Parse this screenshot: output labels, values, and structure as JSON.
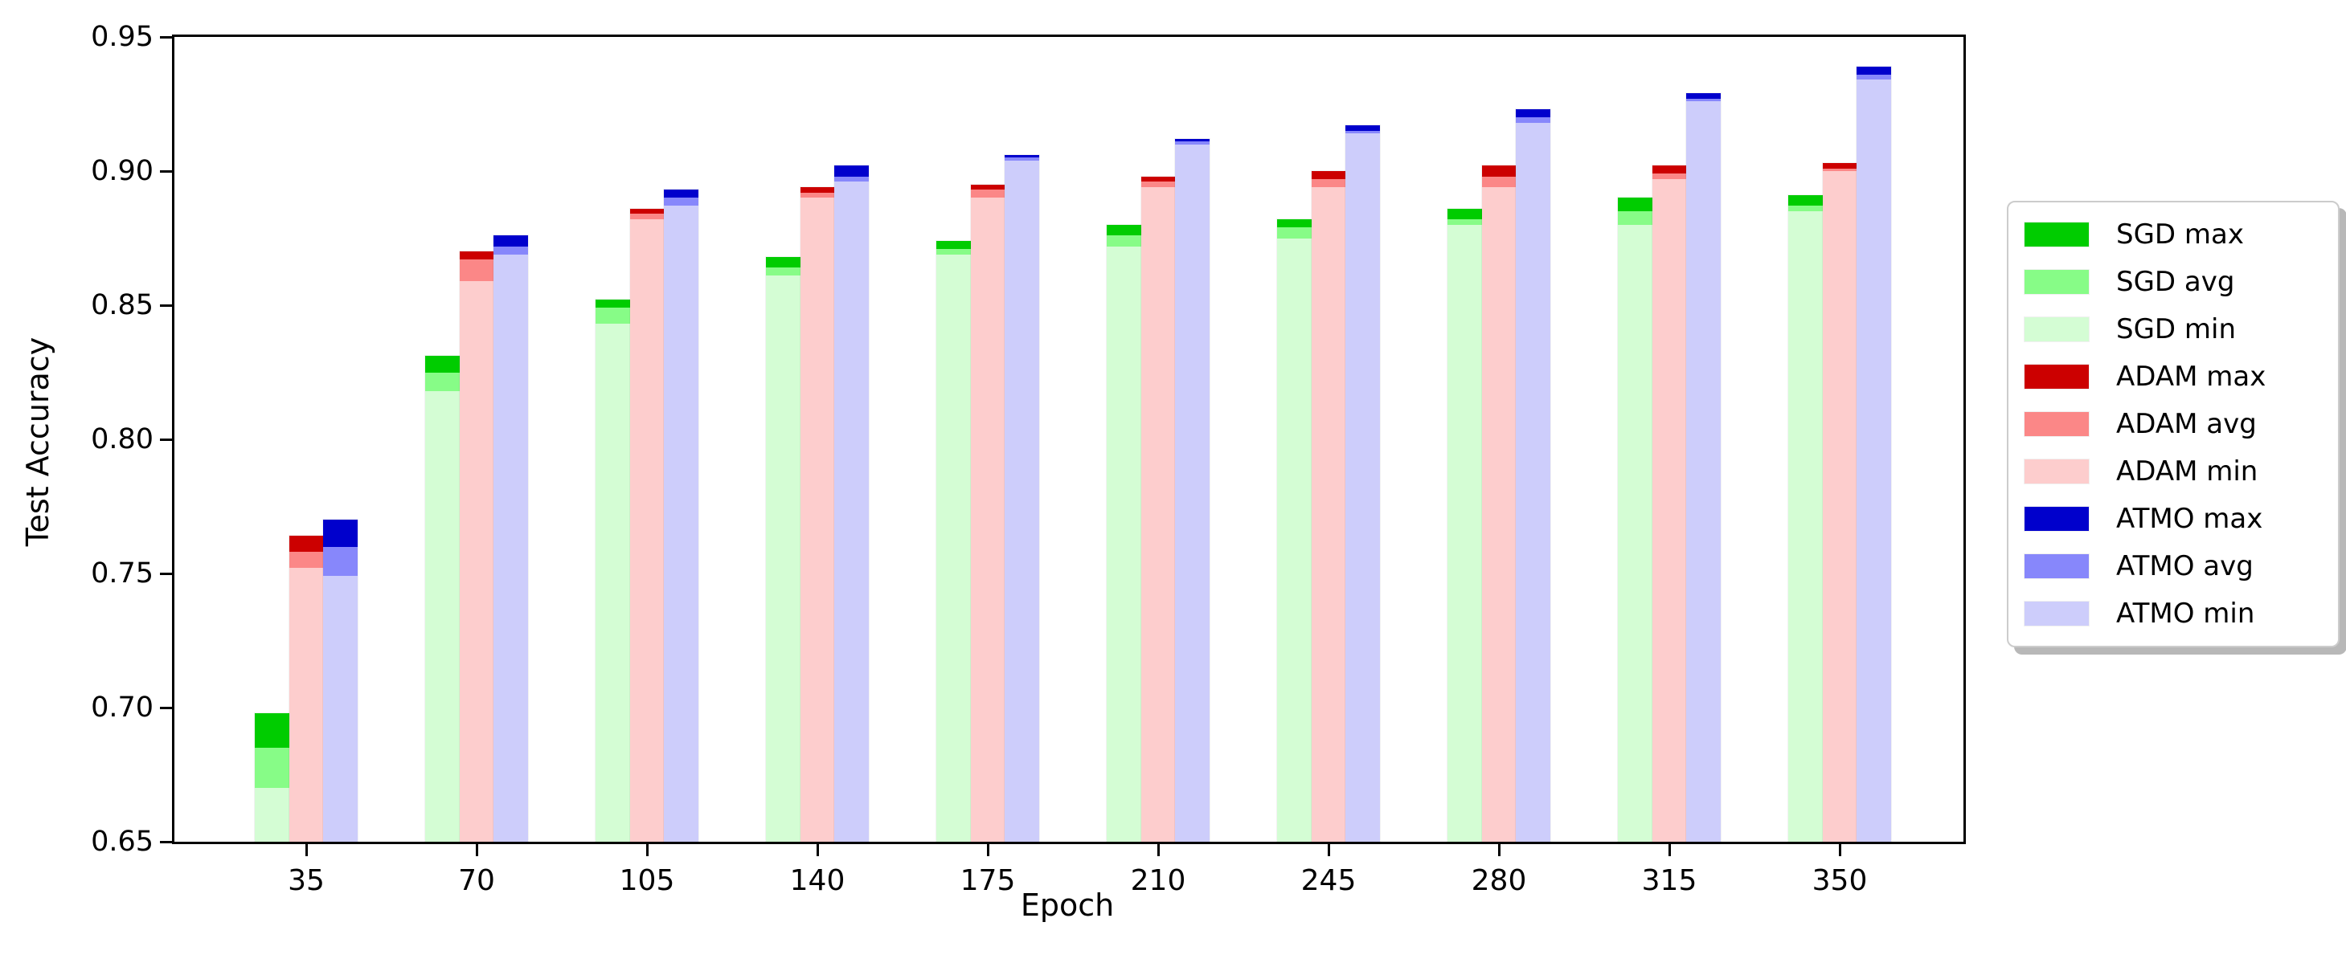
{
  "figure": {
    "xlabel": "Epoch",
    "ylabel": "Test Accuracy",
    "background_color": "#ffffff",
    "axis_color": "#000000"
  },
  "legend_entries": [
    "SGD max",
    "SGD avg",
    "SGD min",
    "ADAM max",
    "ADAM avg",
    "ADAM min",
    "ATMO max",
    "ATMO avg",
    "ATMO min"
  ],
  "chart_data": {
    "type": "bar",
    "style": "overlaid min/avg/max bars per optimizer group (max drawn behind, min in front)",
    "title": "",
    "xlabel": "Epoch",
    "ylabel": "Test Accuracy",
    "categories": [
      35,
      70,
      105,
      140,
      175,
      210,
      245,
      280,
      315,
      350
    ],
    "xtick_labels": [
      "35",
      "70",
      "105",
      "140",
      "175",
      "210",
      "245",
      "280",
      "315",
      "350"
    ],
    "ylim": [
      0.65,
      0.95
    ],
    "yticks": [
      0.65,
      0.7,
      0.75,
      0.8,
      0.85,
      0.9,
      0.95
    ],
    "ytick_labels": [
      "0.65",
      "0.70",
      "0.75",
      "0.80",
      "0.85",
      "0.90",
      "0.95"
    ],
    "grid": false,
    "legend_position": "center right, outside axes",
    "series": [
      {
        "name": "SGD max",
        "color": "#00CC00",
        "values": [
          0.698,
          0.831,
          0.852,
          0.868,
          0.874,
          0.88,
          0.882,
          0.886,
          0.89,
          0.891
        ]
      },
      {
        "name": "SGD avg",
        "color": "#87FC87",
        "values": [
          0.685,
          0.825,
          0.849,
          0.864,
          0.871,
          0.876,
          0.879,
          0.882,
          0.885,
          0.887
        ]
      },
      {
        "name": "SGD min",
        "color": "#D4FDD4",
        "values": [
          0.67,
          0.818,
          0.843,
          0.861,
          0.869,
          0.872,
          0.875,
          0.88,
          0.88,
          0.885
        ]
      },
      {
        "name": "ADAM max",
        "color": "#CC0000",
        "values": [
          0.764,
          0.87,
          0.886,
          0.894,
          0.895,
          0.898,
          0.9,
          0.902,
          0.902,
          0.903
        ]
      },
      {
        "name": "ADAM avg",
        "color": "#FB8787",
        "values": [
          0.758,
          0.867,
          0.884,
          0.892,
          0.893,
          0.896,
          0.897,
          0.898,
          0.899,
          0.901
        ]
      },
      {
        "name": "ADAM min",
        "color": "#FDCDCD",
        "values": [
          0.752,
          0.859,
          0.882,
          0.89,
          0.89,
          0.894,
          0.894,
          0.894,
          0.897,
          0.9
        ]
      },
      {
        "name": "ATMO max",
        "color": "#0000CC",
        "values": [
          0.77,
          0.876,
          0.893,
          0.902,
          0.906,
          0.912,
          0.917,
          0.923,
          0.929,
          0.939
        ]
      },
      {
        "name": "ATMO avg",
        "color": "#8787FB",
        "values": [
          0.76,
          0.872,
          0.89,
          0.898,
          0.905,
          0.911,
          0.915,
          0.92,
          0.927,
          0.936
        ]
      },
      {
        "name": "ATMO min",
        "color": "#CDCDFB",
        "values": [
          0.749,
          0.869,
          0.887,
          0.896,
          0.904,
          0.91,
          0.914,
          0.918,
          0.926,
          0.934
        ]
      }
    ]
  }
}
